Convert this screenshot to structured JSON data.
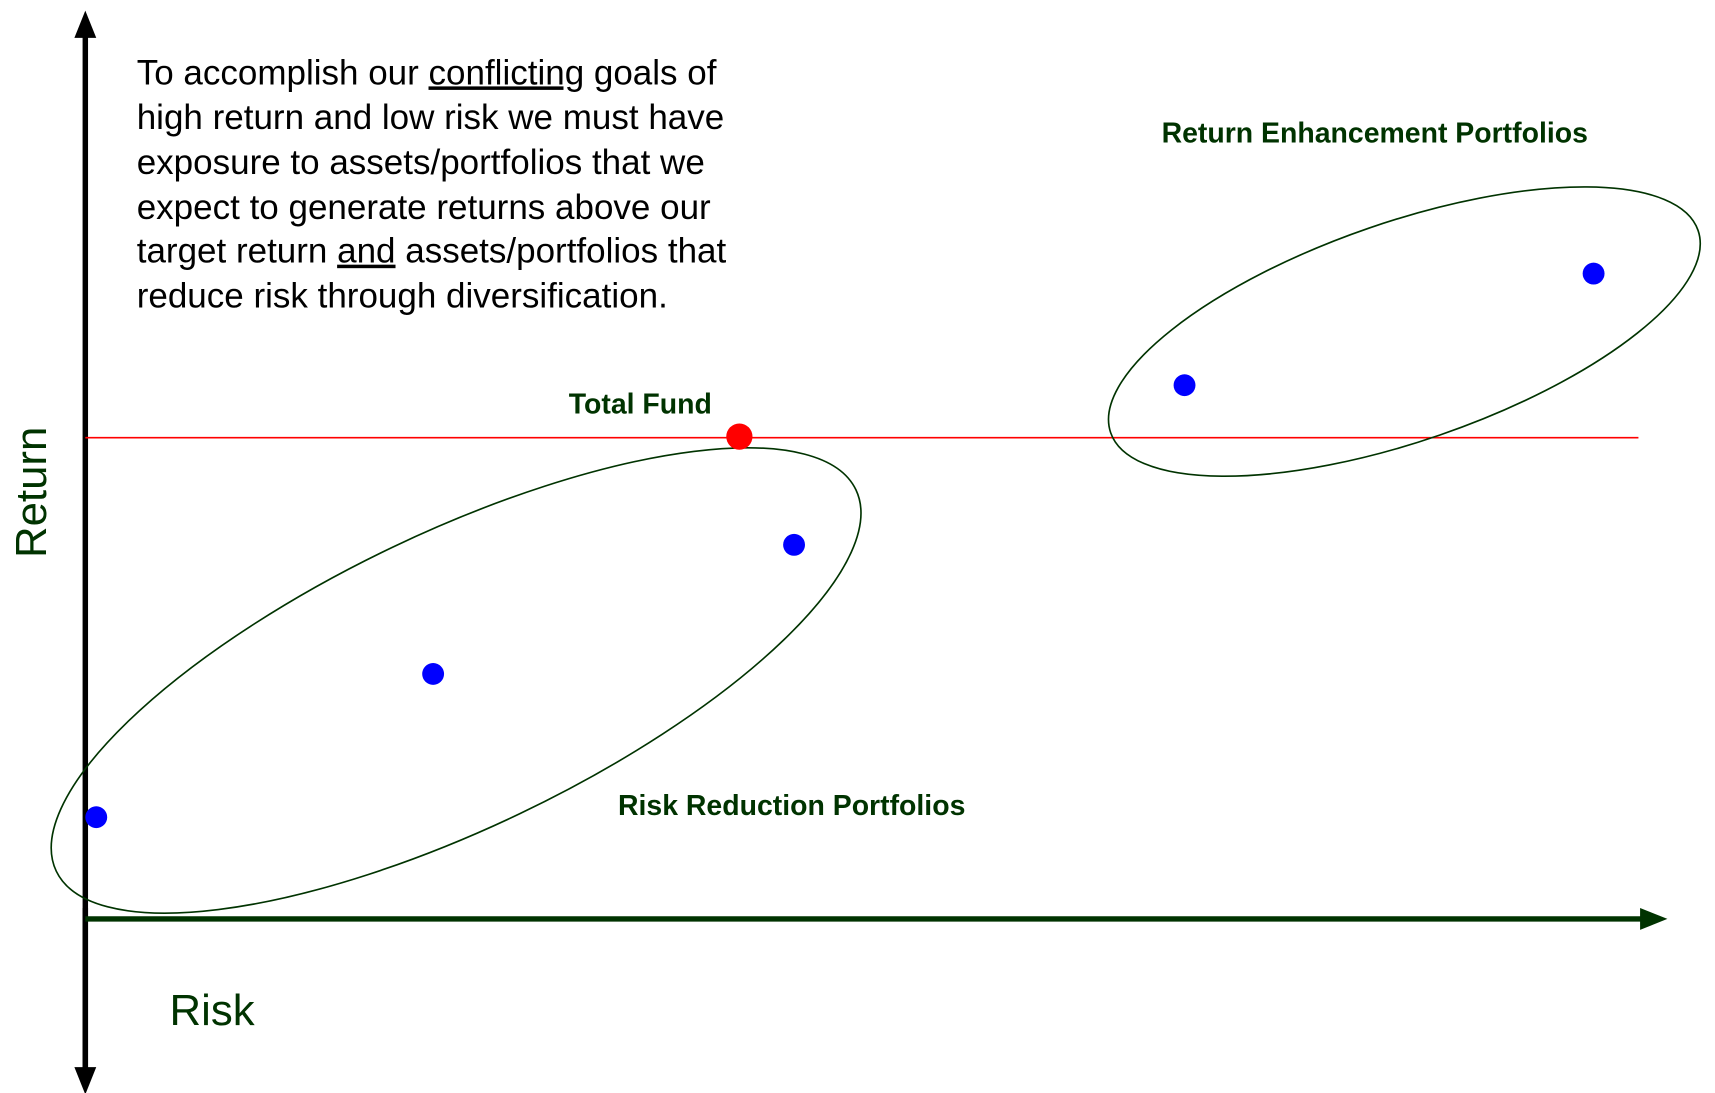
{
  "axes": {
    "y_label": "Return",
    "x_label": "Risk"
  },
  "note": {
    "lines": [
      [
        "To accomplish our ",
        "conflicting",
        " goals of"
      ],
      [
        "high return and low risk we must have"
      ],
      [
        "exposure to assets/portfolios that we"
      ],
      [
        "expect to generate returns above our"
      ],
      [
        "target return ",
        "and",
        " assets/portfolios that"
      ],
      [
        "reduce risk through diversification."
      ]
    ]
  },
  "labels": {
    "total_fund": "Total Fund",
    "return_enhancement": "Return Enhancement Portfolios",
    "risk_reduction": "Risk Reduction Portfolios"
  }
}
